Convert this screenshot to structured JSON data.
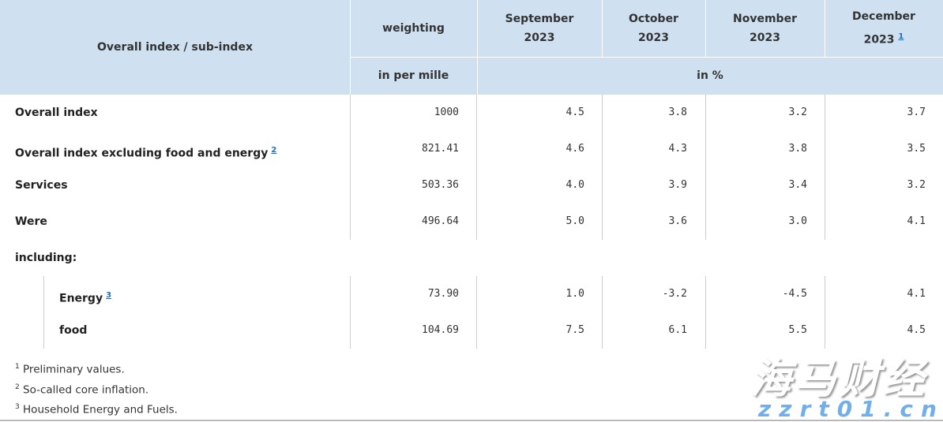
{
  "header": {
    "label_col": "Overall index / sub-index",
    "weighting": "weighting",
    "weighting_unit": "in per mille",
    "months": [
      {
        "month": "September",
        "year": "2023",
        "footnote": ""
      },
      {
        "month": "October",
        "year": "2023",
        "footnote": ""
      },
      {
        "month": "November",
        "year": "2023",
        "footnote": ""
      },
      {
        "month": "December",
        "year": "2023",
        "footnote": "1"
      }
    ],
    "percent_unit": "in %"
  },
  "rows": [
    {
      "label": "Overall index",
      "footnote": "",
      "weighting": "1000",
      "values": [
        "4.5",
        "3.8",
        "3.2",
        "3.7"
      ]
    },
    {
      "label": "Overall index excluding food and energy",
      "footnote": "2",
      "weighting": "821.41",
      "values": [
        "4.6",
        "4.3",
        "3.8",
        "3.5"
      ]
    },
    {
      "label": "Services",
      "footnote": "",
      "weighting": "503.36",
      "values": [
        "4.0",
        "3.9",
        "3.4",
        "3.2"
      ]
    },
    {
      "label": "Were",
      "footnote": "",
      "weighting": "496.64",
      "values": [
        "5.0",
        "3.6",
        "3.0",
        "4.1"
      ]
    },
    {
      "label": "including:"
    },
    {
      "label": "Energy",
      "footnote": "3",
      "weighting": "73.90",
      "values": [
        "1.0",
        "-3.2",
        "-4.5",
        "4.1"
      ]
    },
    {
      "label": "food",
      "footnote": "",
      "weighting": "104.69",
      "values": [
        "7.5",
        "6.1",
        "5.5",
        "4.5"
      ]
    }
  ],
  "footnotes": [
    {
      "num": "1",
      "text": "Preliminary values."
    },
    {
      "num": "2",
      "text": "So-called core inflation."
    },
    {
      "num": "3",
      "text": "Household Energy and Fuels."
    }
  ],
  "watermark": {
    "cn": "海马财经",
    "url": "zzrt01.cn"
  }
}
